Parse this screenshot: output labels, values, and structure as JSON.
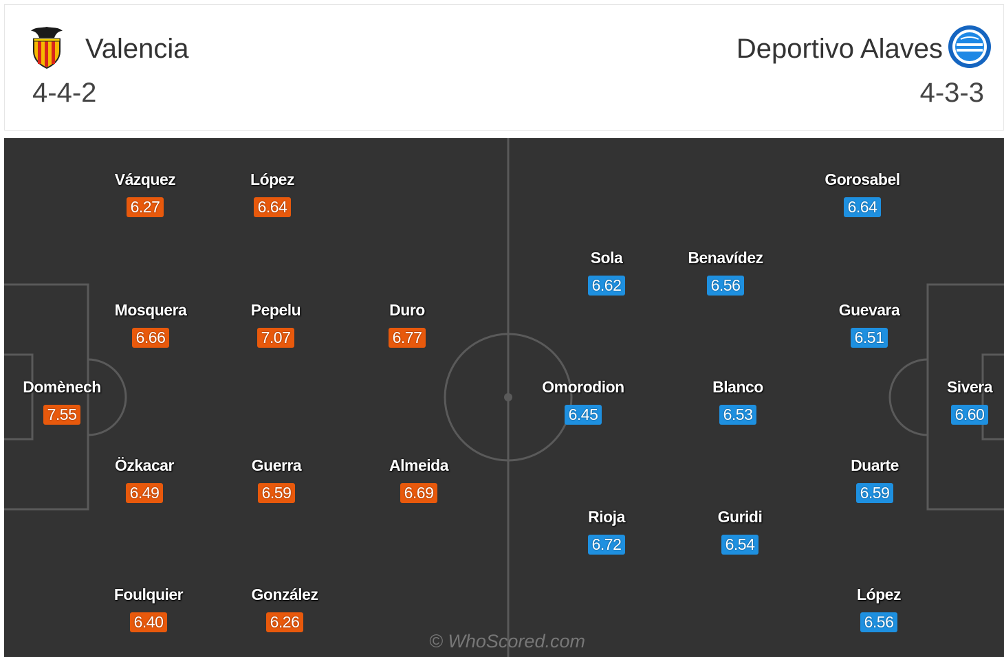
{
  "home": {
    "name": "Valencia",
    "formation": "4-4-2",
    "crest_icon": "valencia-bat-crest",
    "rating_color": "#e8590c",
    "players": [
      {
        "name": "Vázquez",
        "rating": "6.27"
      },
      {
        "name": "López",
        "rating": "6.64"
      },
      {
        "name": "Mosquera",
        "rating": "6.66"
      },
      {
        "name": "Pepelu",
        "rating": "7.07"
      },
      {
        "name": "Duro",
        "rating": "6.77"
      },
      {
        "name": "Domènech",
        "rating": "7.55"
      },
      {
        "name": "Özkacar",
        "rating": "6.49"
      },
      {
        "name": "Guerra",
        "rating": "6.59"
      },
      {
        "name": "Almeida",
        "rating": "6.69"
      },
      {
        "name": "Foulquier",
        "rating": "6.40"
      },
      {
        "name": "González",
        "rating": "6.26"
      }
    ]
  },
  "away": {
    "name": "Deportivo Alaves",
    "formation": "4-3-3",
    "crest_icon": "alaves-crest",
    "rating_color": "#1e90e0",
    "players": [
      {
        "name": "Gorosabel",
        "rating": "6.64"
      },
      {
        "name": "Sola",
        "rating": "6.62"
      },
      {
        "name": "Benavídez",
        "rating": "6.56"
      },
      {
        "name": "Guevara",
        "rating": "6.51"
      },
      {
        "name": "Omorodion",
        "rating": "6.45"
      },
      {
        "name": "Blanco",
        "rating": "6.53"
      },
      {
        "name": "Sivera",
        "rating": "6.60"
      },
      {
        "name": "Duarte",
        "rating": "6.59"
      },
      {
        "name": "Rioja",
        "rating": "6.72"
      },
      {
        "name": "Guridi",
        "rating": "6.54"
      },
      {
        "name": "López",
        "rating": "6.56"
      }
    ]
  },
  "watermark": "© WhoScored.com",
  "colors": {
    "pitch": "#333333",
    "lines": "#5a5a5a"
  }
}
